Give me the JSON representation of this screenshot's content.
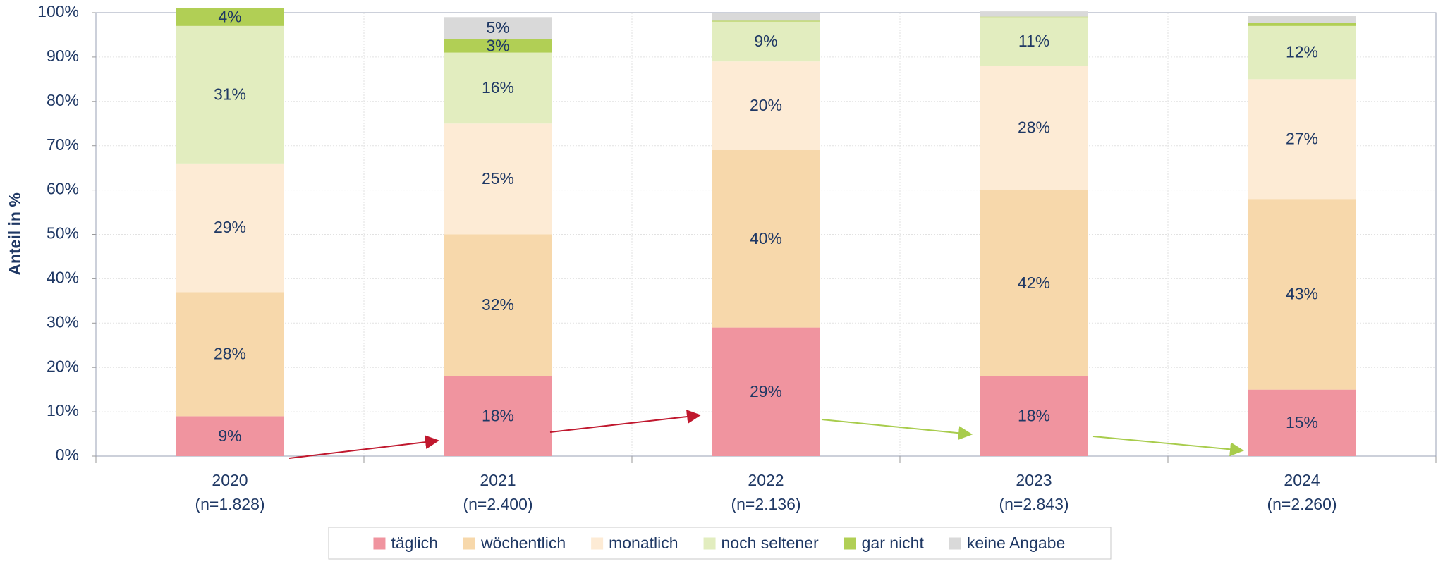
{
  "chart_data": {
    "type": "stacked_bar",
    "y_label": "Anteil in %",
    "categories": [
      "2020",
      "2021",
      "2022",
      "2023",
      "2024"
    ],
    "category_notes": [
      "(n=1.828)",
      "(n=2.400)",
      "(n=2.136)",
      "(n=2.843)",
      "(n=2.260)"
    ],
    "ylim": [
      0,
      100
    ],
    "yticks": [
      {
        "value": 0,
        "label": "0%"
      },
      {
        "value": 10,
        "label": "10%"
      },
      {
        "value": 20,
        "label": "20%"
      },
      {
        "value": 30,
        "label": "30%"
      },
      {
        "value": 40,
        "label": "40%"
      },
      {
        "value": 50,
        "label": "50%"
      },
      {
        "value": 60,
        "label": "60%"
      },
      {
        "value": 70,
        "label": "70%"
      },
      {
        "value": 80,
        "label": "80%"
      },
      {
        "value": 90,
        "label": "90%"
      },
      {
        "value": 100,
        "label": "100%"
      }
    ],
    "grid": true,
    "legend": "bottom",
    "series": [
      {
        "name": "täglich",
        "color": "#f0949f",
        "values": [
          9,
          18,
          29,
          18,
          15
        ],
        "value_labels": [
          "9%",
          "18%",
          "29%",
          "18%",
          "15%"
        ]
      },
      {
        "name": "wöchentlich",
        "color": "#f7d8ab",
        "values": [
          28,
          32,
          40,
          42,
          43
        ],
        "value_labels": [
          "28%",
          "32%",
          "40%",
          "42%",
          "43%"
        ]
      },
      {
        "name": "monatlich",
        "color": "#fdebd5",
        "values": [
          29,
          25,
          20,
          28,
          27
        ],
        "value_labels": [
          "29%",
          "25%",
          "20%",
          "28%",
          "27%"
        ]
      },
      {
        "name": "noch seltener",
        "color": "#e2edbf",
        "values": [
          31,
          16,
          9,
          11,
          12
        ],
        "value_labels": [
          "31%",
          "16%",
          "9%",
          "11%",
          "12%"
        ]
      },
      {
        "name": "gar nicht",
        "color": "#b1cf55",
        "values": [
          4,
          3,
          0.2,
          0.1,
          0.7
        ],
        "value_labels": [
          "4%",
          "3%",
          null,
          null,
          null
        ]
      },
      {
        "name": "keine Angabe",
        "color": "#d9d9d9",
        "values": [
          0,
          5,
          1.8,
          1.2,
          1.5
        ],
        "value_labels": [
          null,
          "5%",
          null,
          null,
          null
        ]
      }
    ]
  }
}
